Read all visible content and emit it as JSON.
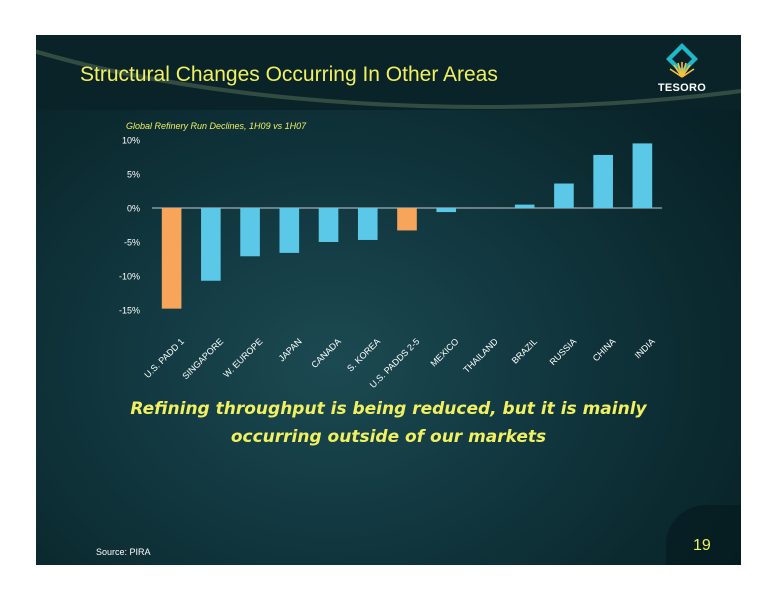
{
  "slide": {
    "title": "Structural Changes Occurring In Other Areas",
    "logo_text": "TESORO",
    "tagline_line1": "Refining throughput is being reduced, but it is mainly",
    "tagline_line2": "occurring outside of our markets",
    "source": "Source: PIRA",
    "page_number": "19"
  },
  "colors": {
    "title": "#f0f060",
    "bar_highlight": "#f7a55a",
    "bar_default": "#5ac8e6",
    "axis_text": "#ffffff"
  },
  "chart_data": {
    "type": "bar",
    "title": "Global Refinery Run Declines, 1H09 vs 1H07",
    "xlabel": "",
    "ylabel": "",
    "ylim": [
      -15,
      10
    ],
    "yticks": [
      10,
      5,
      0,
      -5,
      -10,
      -15
    ],
    "ytick_labels": [
      "10%",
      "5%",
      "0%",
      "-5%",
      "-10%",
      "-15%"
    ],
    "categories": [
      "U.S. PADD 1",
      "SINGAPORE",
      "W. EUROPE",
      "JAPAN",
      "CANADA",
      "S. KOREA",
      "U.S. PADDS 2-5",
      "MEXICO",
      "THAILAND",
      "BRAZIL",
      "RUSSIA",
      "CHINA",
      "INDIA"
    ],
    "values": [
      -14.8,
      -10.7,
      -7.1,
      -6.6,
      -5.0,
      -4.7,
      -3.3,
      -0.6,
      0.0,
      0.5,
      3.6,
      7.8,
      9.5
    ],
    "highlighted": [
      "U.S. PADD 1",
      "U.S. PADDS 2-5"
    ],
    "grid": false,
    "legend": "none"
  }
}
